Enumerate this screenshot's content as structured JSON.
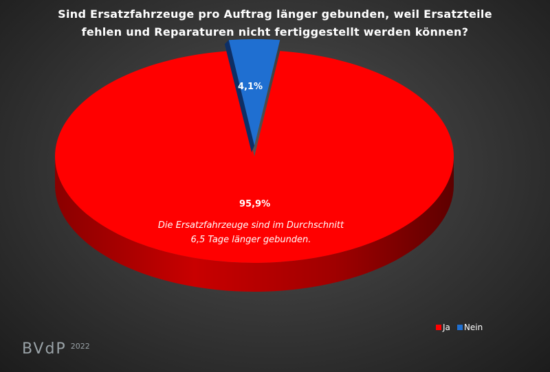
{
  "title_lines": [
    "Sind Ersatzfahrzeuge pro Auftrag länger gebunden, weil Ersatzteile",
    "fehlen und Reparaturen nicht fertiggestellt werden können?"
  ],
  "note_lines": [
    "Die Ersatzfahrzeuge sind im Durchschnitt",
    "6,5 Tage länger gebunden."
  ],
  "brand": {
    "logo": "BVdP",
    "year": "2022"
  },
  "colors": {
    "ja": "#ff0000",
    "nein": "#1f6fd1"
  },
  "chart_data": {
    "type": "pie",
    "title": "Sind Ersatzfahrzeuge pro Auftrag länger gebunden, weil Ersatzteile fehlen und Reparaturen nicht fertiggestellt werden können?",
    "categories": [
      "Ja",
      "Nein"
    ],
    "values": [
      95.9,
      4.1
    ],
    "labels": [
      "95,9%",
      "4,1%"
    ],
    "legend": [
      "Ja",
      "Nein"
    ],
    "legend_position": "bottom-right",
    "annotation": "Die Ersatzfahrzeuge sind im Durchschnitt 6,5 Tage länger gebunden."
  }
}
